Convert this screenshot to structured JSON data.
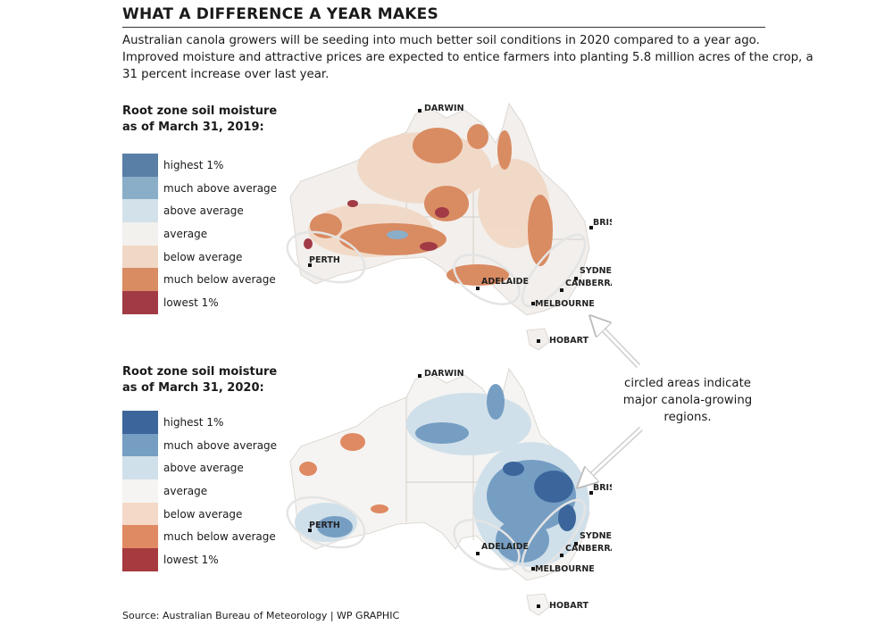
{
  "header": {
    "title": "WHAT A DIFFERENCE A YEAR MAKES",
    "intro_lines": [
      "Australian canola growers will be seeding into much better soil conditions in 2020 compared to a year ago.",
      "Improved moisture and attractive prices are expected to entice farmers into planting 5.8 million acres of the crop, a",
      "31 percent increase over last year."
    ]
  },
  "map_2019": {
    "title_lines": [
      "Root zone soil moisture",
      "as of March 31, 2019:"
    ],
    "legend": [
      {
        "label": "highest 1%",
        "color": "#5a7fa6"
      },
      {
        "label": "much above average",
        "color": "#8aaec8"
      },
      {
        "label": "above average",
        "color": "#d3e2ea"
      },
      {
        "label": "average",
        "color": "#f3f1ee"
      },
      {
        "label": "below average",
        "color": "#f1d8c6"
      },
      {
        "label": "much below average",
        "color": "#d98b62"
      },
      {
        "label": "lowest 1%",
        "color": "#a23a45"
      }
    ],
    "cities": [
      "DARWIN",
      "BRISBANE",
      "PERTH",
      "SYDNEY",
      "ADELAIDE",
      "CANBERRA",
      "MELBOURNE",
      "HOBART"
    ]
  },
  "map_2020": {
    "title_lines": [
      "Root zone soil moisture",
      "as of March 31, 2020:"
    ],
    "legend": [
      {
        "label": "highest 1%",
        "color": "#3b659b"
      },
      {
        "label": "much above average",
        "color": "#769ec3"
      },
      {
        "label": "above average",
        "color": "#d0e0ea"
      },
      {
        "label": "average",
        "color": "#f5f4f2"
      },
      {
        "label": "below average",
        "color": "#f4d9c8"
      },
      {
        "label": "much below average",
        "color": "#df8a63"
      },
      {
        "label": "lowest 1%",
        "color": "#a63a3e"
      }
    ],
    "cities": [
      "DARWIN",
      "BRISBANE",
      "PERTH",
      "SYDNEY",
      "ADELAIDE",
      "CANBERRA",
      "MELBOURNE",
      "HOBART"
    ]
  },
  "annotation_lines": [
    "circled areas indicate",
    "major canola-growing",
    "regions."
  ],
  "source": "Source: Australian Bureau of Meteorology  |  WP GRAPHIC"
}
